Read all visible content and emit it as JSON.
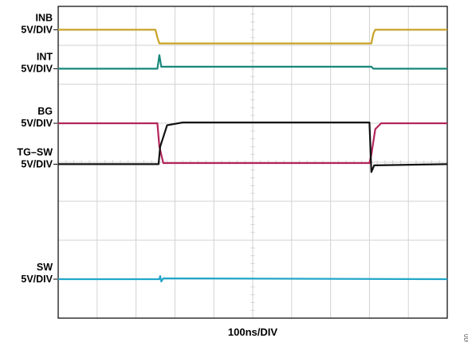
{
  "chart_data": {
    "type": "line",
    "title": "",
    "xlabel": "100ns/DIV",
    "figure_code": "005",
    "grid": true,
    "x_divisions": 10,
    "y_divisions": 8,
    "colors": {
      "INB": "#c9a227",
      "INT": "#17877a",
      "BG": "#b3245a",
      "TG-SW": "#111111",
      "SW": "#22a6c9",
      "grid": "#d2d2d2",
      "frame": "#000000"
    },
    "channel_labels": [
      {
        "channel": "INB",
        "line1": "INB",
        "line2": "5V/DIV"
      },
      {
        "channel": "INT",
        "line1": "INT",
        "line2": "5V/DIV"
      },
      {
        "channel": "BG",
        "line1": "BG",
        "line2": "5V/DIV"
      },
      {
        "channel": "TG-SW",
        "line1": "TG–SW",
        "line2": "5V/DIV"
      },
      {
        "channel": "SW",
        "line1": "SW",
        "line2": "5V/DIV"
      }
    ],
    "x_unit": "div",
    "y_unit": "div",
    "series": [
      {
        "key": "INB",
        "points": [
          [
            0,
            7.4
          ],
          [
            2.5,
            7.4
          ],
          [
            2.55,
            7.2
          ],
          [
            2.6,
            7.05
          ],
          [
            8.05,
            7.05
          ],
          [
            8.1,
            7.3
          ],
          [
            8.15,
            7.4
          ],
          [
            10,
            7.4
          ]
        ]
      },
      {
        "key": "INT",
        "points": [
          [
            0,
            6.4
          ],
          [
            2.55,
            6.4
          ],
          [
            2.6,
            6.75
          ],
          [
            2.65,
            6.45
          ],
          [
            8.05,
            6.45
          ],
          [
            8.1,
            6.4
          ],
          [
            10,
            6.4
          ]
        ]
      },
      {
        "key": "BG",
        "points": [
          [
            0,
            5.0
          ],
          [
            2.55,
            5.0
          ],
          [
            2.6,
            4.4
          ],
          [
            2.7,
            3.98
          ],
          [
            8.0,
            3.98
          ],
          [
            8.05,
            4.2
          ],
          [
            8.15,
            4.85
          ],
          [
            8.3,
            5.0
          ],
          [
            10,
            5.0
          ]
        ]
      },
      {
        "key": "TG-SW",
        "points": [
          [
            0,
            3.95
          ],
          [
            2.58,
            3.95
          ],
          [
            2.62,
            4.4
          ],
          [
            2.8,
            4.95
          ],
          [
            3.2,
            5.02
          ],
          [
            8.0,
            5.02
          ],
          [
            8.02,
            4.5
          ],
          [
            8.05,
            3.75
          ],
          [
            8.12,
            3.92
          ],
          [
            10,
            3.95
          ]
        ]
      },
      {
        "key": "SW",
        "points": [
          [
            0,
            1.0
          ],
          [
            2.6,
            1.0
          ],
          [
            2.62,
            1.08
          ],
          [
            2.65,
            0.94
          ],
          [
            2.7,
            1.02
          ],
          [
            10,
            1.0
          ]
        ]
      }
    ]
  }
}
